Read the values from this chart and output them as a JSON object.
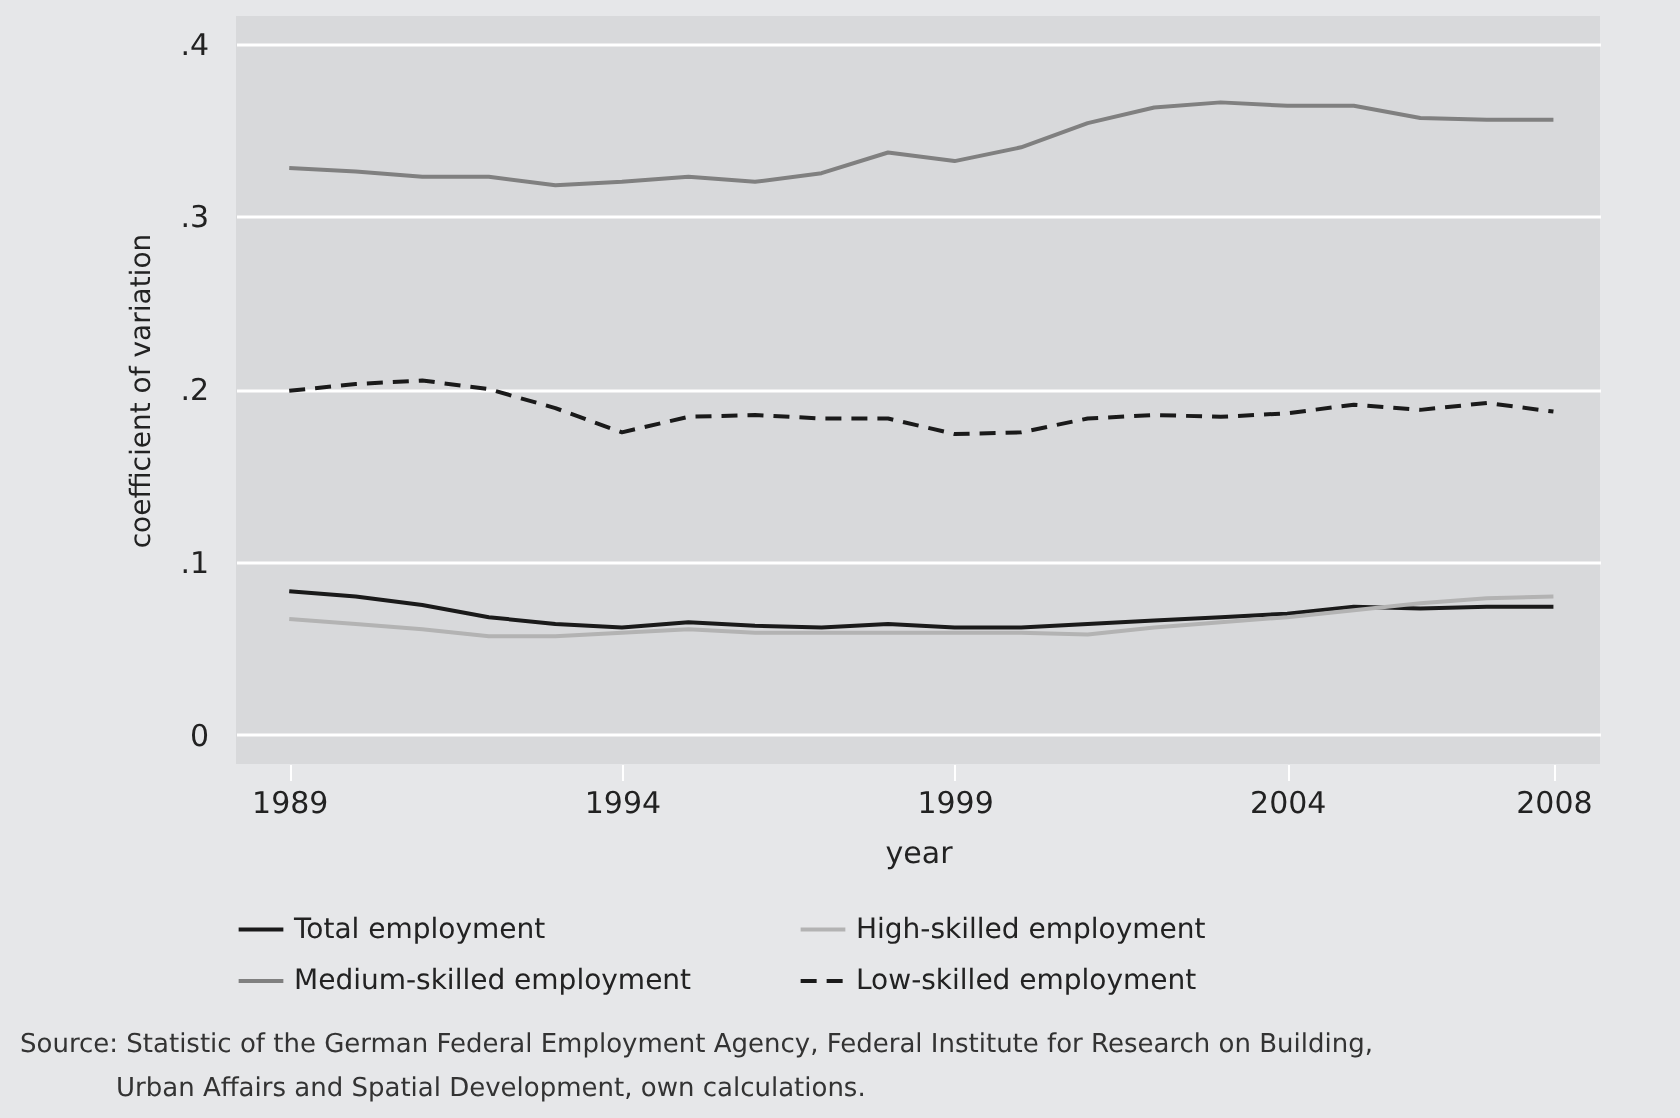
{
  "chart_data": {
    "type": "line",
    "xlabel": "year",
    "ylabel": "coefficient of variation",
    "x": [
      1989,
      1990,
      1991,
      1992,
      1993,
      1994,
      1995,
      1996,
      1997,
      1998,
      1999,
      2000,
      2001,
      2002,
      2003,
      2004,
      2005,
      2006,
      2007,
      2008
    ],
    "series": [
      {
        "name": "Total employment",
        "color": "#1a1a1a",
        "line_style": "solid",
        "values": [
          0.083,
          0.08,
          0.075,
          0.068,
          0.064,
          0.062,
          0.065,
          0.063,
          0.062,
          0.064,
          0.062,
          0.062,
          0.064,
          0.066,
          0.068,
          0.07,
          0.074,
          0.073,
          0.074,
          0.074
        ]
      },
      {
        "name": "High-skilled employment",
        "color": "#b3b3b3",
        "line_style": "solid",
        "values": [
          0.067,
          0.064,
          0.061,
          0.057,
          0.057,
          0.059,
          0.061,
          0.059,
          0.059,
          0.059,
          0.059,
          0.059,
          0.058,
          0.062,
          0.065,
          0.068,
          0.072,
          0.076,
          0.079,
          0.08
        ]
      },
      {
        "name": "Medium-skilled employment",
        "color": "#808080",
        "line_style": "solid",
        "values": [
          0.328,
          0.326,
          0.323,
          0.323,
          0.318,
          0.32,
          0.323,
          0.32,
          0.325,
          0.337,
          0.332,
          0.34,
          0.354,
          0.363,
          0.366,
          0.364,
          0.364,
          0.357,
          0.356,
          0.356
        ]
      },
      {
        "name": "Low-skilled employment",
        "color": "#1a1a1a",
        "line_style": "dashed",
        "values": [
          0.199,
          0.203,
          0.205,
          0.2,
          0.189,
          0.175,
          0.184,
          0.185,
          0.183,
          0.183,
          0.174,
          0.175,
          0.183,
          0.185,
          0.184,
          0.186,
          0.191,
          0.188,
          0.192,
          0.187
        ]
      }
    ],
    "xlim": [
      1988.2,
      2008.7
    ],
    "xticks": [
      1989,
      1994,
      1999,
      2004,
      2008
    ],
    "ylim": [
      -0.017,
      0.416
    ],
    "yticks": [
      0,
      {
        "value": 0.1,
        "label": ".1"
      },
      {
        "value": 0.2,
        "label": ".2"
      },
      {
        "value": 0.3,
        "label": ".3"
      },
      {
        "value": 0.4,
        "label": ".4"
      }
    ],
    "grid": "y",
    "legend": "bottom",
    "annotations": [
      "Source: Statistic of the German Federal Employment Agency, Federal Institute for Research on Building, Urban Affairs and Spatial Development, own calculations."
    ]
  }
}
